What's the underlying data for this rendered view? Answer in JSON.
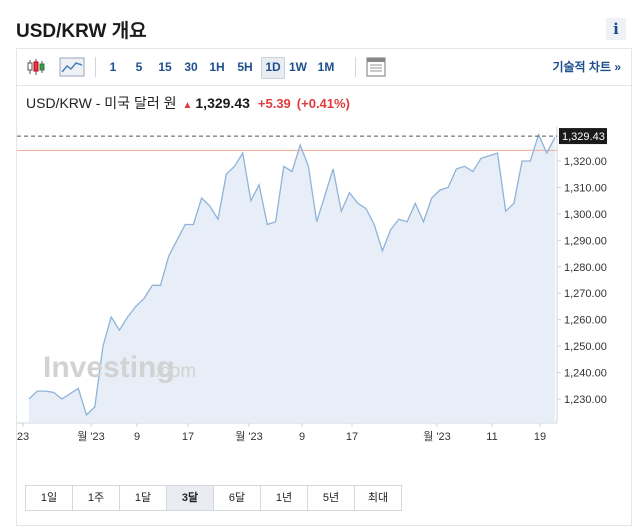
{
  "header": {
    "title": "USD/KRW 개요",
    "info_glyph": "i"
  },
  "toolbar": {
    "timeframes": [
      {
        "label": "1",
        "active": false
      },
      {
        "label": "5",
        "active": false
      },
      {
        "label": "15",
        "active": false
      },
      {
        "label": "30",
        "active": false
      },
      {
        "label": "1H",
        "active": false
      },
      {
        "label": "5H",
        "active": false
      },
      {
        "label": "1D",
        "active": true
      },
      {
        "label": "1W",
        "active": false
      },
      {
        "label": "1M",
        "active": false
      }
    ],
    "advanced_chart_label": "기술적 차트 »",
    "icons": [
      "candlestick-icon",
      "line-chart-icon",
      "table-icon"
    ]
  },
  "quote": {
    "name": "USD/KRW - 미국 달러 원",
    "direction": "up",
    "price": "1,329.43",
    "change": "+5.39",
    "change_pct": "(+0.41%)"
  },
  "watermark": {
    "brand": "Investing",
    "suffix": ".com"
  },
  "colors": {
    "up": "#e03a3e",
    "link": "#1c4f8f",
    "line": "#8fb3d9",
    "area": "#e7eef7",
    "ref_line": "#f0a898",
    "last_price_bg": "#1a1a1a"
  },
  "chart_data": {
    "type": "area",
    "y_ticks": [
      "1,230.00",
      "1,240.00",
      "1,250.00",
      "1,260.00",
      "1,270.00",
      "1,280.00",
      "1,290.00",
      "1,300.00",
      "1,310.00",
      "1,320.00"
    ],
    "y_tick_values": [
      1230,
      1240,
      1250,
      1260,
      1270,
      1280,
      1290,
      1300,
      1310,
      1320
    ],
    "x_tick_labels": [
      "23",
      "월 '23",
      "9",
      "17",
      "월 '23",
      "9",
      "17",
      "월 '23",
      "11",
      "19"
    ],
    "last_price_label": "1,329.43",
    "last_price": 1329.43,
    "reference_value": 1324.04,
    "values": [
      1230,
      1233,
      1233,
      1232.5,
      1230,
      1232,
      1234,
      1224,
      1227,
      1250,
      1261,
      1256,
      1261,
      1265,
      1268,
      1273,
      1273,
      1284,
      1290,
      1296,
      1296,
      1306,
      1303,
      1298,
      1315,
      1318,
      1323,
      1305,
      1311,
      1296,
      1297,
      1318,
      1316,
      1326,
      1318,
      1297,
      1307,
      1317,
      1301,
      1308,
      1304,
      1302,
      1296,
      1286,
      1294,
      1298,
      1297,
      1304,
      1297,
      1306,
      1309,
      1310,
      1317,
      1318,
      1316,
      1321,
      1322,
      1323,
      1301,
      1304,
      1320,
      1320,
      1330,
      1323,
      1329
    ]
  },
  "ranges": [
    {
      "label": "1일",
      "active": false
    },
    {
      "label": "1주",
      "active": false
    },
    {
      "label": "1달",
      "active": false
    },
    {
      "label": "3달",
      "active": true
    },
    {
      "label": "6달",
      "active": false
    },
    {
      "label": "1년",
      "active": false
    },
    {
      "label": "5년",
      "active": false
    },
    {
      "label": "최대",
      "active": false
    }
  ]
}
